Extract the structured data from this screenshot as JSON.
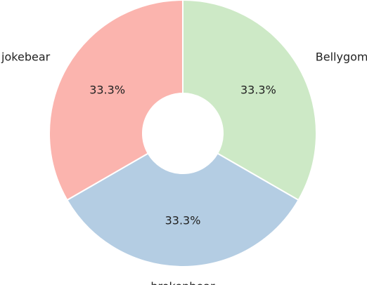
{
  "chart_data": {
    "type": "pie",
    "donut": true,
    "categories": [
      "Bellygom",
      "brokenbear",
      "jokebear"
    ],
    "values": [
      33.3,
      33.3,
      33.3
    ],
    "value_labels": [
      "33.3%",
      "33.3%",
      "33.3%"
    ],
    "colors": [
      "#cde9c6",
      "#b4cde3",
      "#fbb4ae"
    ],
    "edge_color": "#ffffff",
    "legend": "none"
  }
}
